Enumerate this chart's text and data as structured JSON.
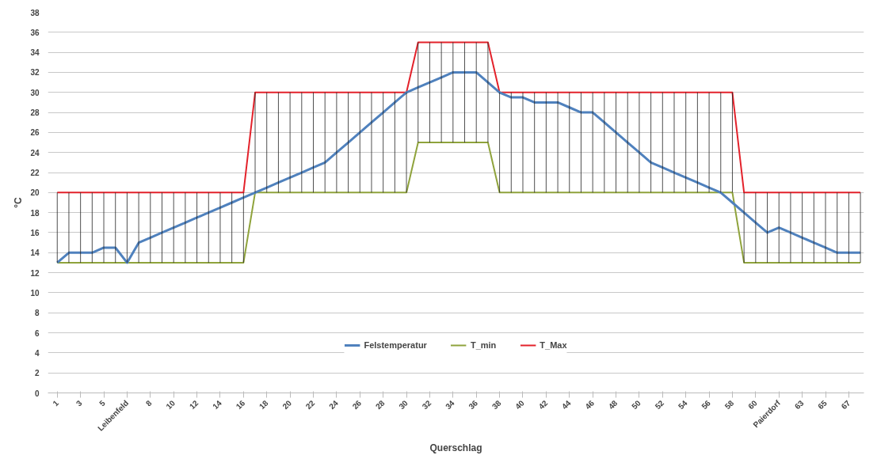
{
  "chart_data": {
    "type": "line",
    "xlabel": "Querschlag",
    "ylabel": "°C",
    "categories": [
      "1",
      null,
      "3",
      null,
      "5",
      null,
      "Leibenfeld",
      null,
      "8",
      null,
      "10",
      null,
      "12",
      null,
      "14",
      null,
      "16",
      null,
      "18",
      null,
      "20",
      null,
      "22",
      null,
      "24",
      null,
      "26",
      null,
      "28",
      null,
      "30",
      null,
      "32",
      null,
      "34",
      null,
      "36",
      null,
      "38",
      null,
      "40",
      null,
      "42",
      null,
      "44",
      null,
      "46",
      null,
      "48",
      null,
      "50",
      null,
      "52",
      null,
      "54",
      null,
      "56",
      null,
      "58",
      null,
      "60",
      null,
      "Paierdorf",
      null,
      "63",
      null,
      "65",
      null,
      "67",
      null
    ],
    "series": [
      {
        "name": "Felstemperatur",
        "color": "#4f81bd",
        "values": [
          13,
          14,
          14,
          14,
          14.5,
          14.5,
          13,
          15,
          15.5,
          16,
          16.5,
          17,
          17.5,
          18,
          18.5,
          19,
          19.5,
          20,
          20.5,
          21,
          21.5,
          22,
          22.5,
          23,
          24,
          25,
          26,
          27,
          28,
          29,
          30,
          30.5,
          31,
          31.5,
          32,
          32,
          32,
          31,
          30,
          29.5,
          29.5,
          29,
          29,
          29,
          28.5,
          28,
          28,
          27,
          26,
          25,
          24,
          23,
          22.5,
          22,
          21.5,
          21,
          20.5,
          20,
          19,
          18,
          17,
          16,
          16.5,
          16,
          15.5,
          15,
          14.5,
          14,
          14,
          14
        ]
      },
      {
        "name": "T_min",
        "color": "#8fa33c",
        "values": [
          13,
          13,
          13,
          13,
          13,
          13,
          13,
          13,
          13,
          13,
          13,
          13,
          13,
          13,
          13,
          13,
          13,
          20,
          20,
          20,
          20,
          20,
          20,
          20,
          20,
          20,
          20,
          20,
          20,
          20,
          20,
          25,
          25,
          25,
          25,
          25,
          25,
          25,
          20,
          20,
          20,
          20,
          20,
          20,
          20,
          20,
          20,
          20,
          20,
          20,
          20,
          20,
          20,
          20,
          20,
          20,
          20,
          20,
          20,
          13,
          13,
          13,
          13,
          13,
          13,
          13,
          13,
          13,
          13,
          13
        ]
      },
      {
        "name": "T_Max",
        "color": "#e3222b",
        "values": [
          20,
          20,
          20,
          20,
          20,
          20,
          20,
          20,
          20,
          20,
          20,
          20,
          20,
          20,
          20,
          20,
          20,
          30,
          30,
          30,
          30,
          30,
          30,
          30,
          30,
          30,
          30,
          30,
          30,
          30,
          30,
          35,
          35,
          35,
          35,
          35,
          35,
          35,
          30,
          30,
          30,
          30,
          30,
          30,
          30,
          30,
          30,
          30,
          30,
          30,
          30,
          30,
          30,
          30,
          30,
          30,
          30,
          30,
          30,
          20,
          20,
          20,
          20,
          20,
          20,
          20,
          20,
          20,
          20,
          20
        ],
        "errors": [
          [
            13,
            20
          ],
          [
            13,
            20
          ],
          [
            13,
            20
          ],
          [
            13,
            20
          ],
          [
            13,
            20
          ],
          [
            13,
            20
          ],
          [
            13,
            20
          ],
          [
            13,
            20
          ],
          [
            13,
            20
          ],
          [
            13,
            20
          ],
          [
            13,
            20
          ],
          [
            13,
            20
          ],
          [
            13,
            20
          ],
          [
            13,
            20
          ],
          [
            13,
            20
          ],
          [
            13,
            20
          ],
          [
            13,
            20
          ],
          [
            20,
            30
          ],
          [
            20,
            30
          ],
          [
            20,
            30
          ],
          [
            20,
            30
          ],
          [
            20,
            30
          ],
          [
            20,
            30
          ],
          [
            20,
            30
          ],
          [
            20,
            30
          ],
          [
            20,
            30
          ],
          [
            20,
            30
          ],
          [
            20,
            30
          ],
          [
            20,
            30
          ],
          [
            20,
            30
          ],
          [
            20,
            30
          ],
          [
            25,
            35
          ],
          [
            25,
            35
          ],
          [
            25,
            35
          ],
          [
            25,
            35
          ],
          [
            25,
            35
          ],
          [
            25,
            35
          ],
          [
            25,
            35
          ],
          [
            20,
            30
          ],
          [
            20,
            30
          ],
          [
            20,
            30
          ],
          [
            20,
            30
          ],
          [
            20,
            30
          ],
          [
            20,
            30
          ],
          [
            20,
            30
          ],
          [
            20,
            30
          ],
          [
            20,
            30
          ],
          [
            20,
            30
          ],
          [
            20,
            30
          ],
          [
            20,
            30
          ],
          [
            20,
            30
          ],
          [
            20,
            30
          ],
          [
            20,
            30
          ],
          [
            20,
            30
          ],
          [
            20,
            30
          ],
          [
            20,
            30
          ],
          [
            20,
            30
          ],
          [
            20,
            30
          ],
          [
            20,
            30
          ],
          [
            13,
            20
          ],
          [
            13,
            20
          ],
          [
            13,
            20
          ],
          [
            13,
            20
          ],
          [
            13,
            20
          ],
          [
            13,
            20
          ],
          [
            13,
            20
          ],
          [
            13,
            20
          ],
          [
            13,
            20
          ],
          [
            13,
            20
          ],
          [
            13,
            20
          ]
        ]
      }
    ],
    "ylim": [
      0,
      38
    ],
    "yticks": [
      0,
      2,
      4,
      6,
      8,
      10,
      12,
      14,
      16,
      18,
      20,
      22,
      24,
      26,
      28,
      30,
      32,
      34,
      36,
      38
    ],
    "grid": "y",
    "legend": "bottom",
    "marker": "none",
    "line_style": "solid"
  }
}
